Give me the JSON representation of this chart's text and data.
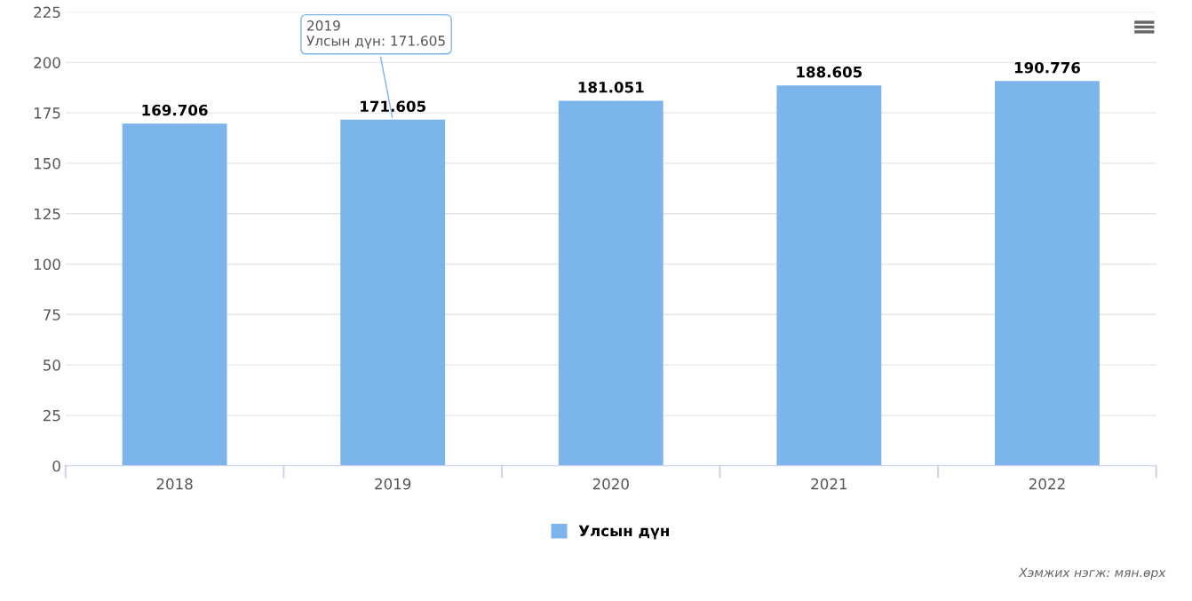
{
  "chart_data": {
    "type": "bar",
    "categories": [
      "2018",
      "2019",
      "2020",
      "2021",
      "2022"
    ],
    "series": [
      {
        "name": "Улсын дүн",
        "color": "#7cb5ec",
        "values": [
          169.706,
          171.605,
          181.051,
          188.605,
          190.776
        ]
      }
    ],
    "ylim": [
      0,
      225
    ],
    "yticks": [
      0,
      25,
      50,
      75,
      100,
      125,
      150,
      175,
      200,
      225
    ],
    "grid": "y",
    "legend": "bottom",
    "data_labels": true,
    "annotations": [
      {
        "text": "2019\nУлсын дүн: 171.605",
        "x": "2019",
        "y": 171.605
      },
      "Хэмжих нэгж: мян.өрх"
    ]
  }
}
